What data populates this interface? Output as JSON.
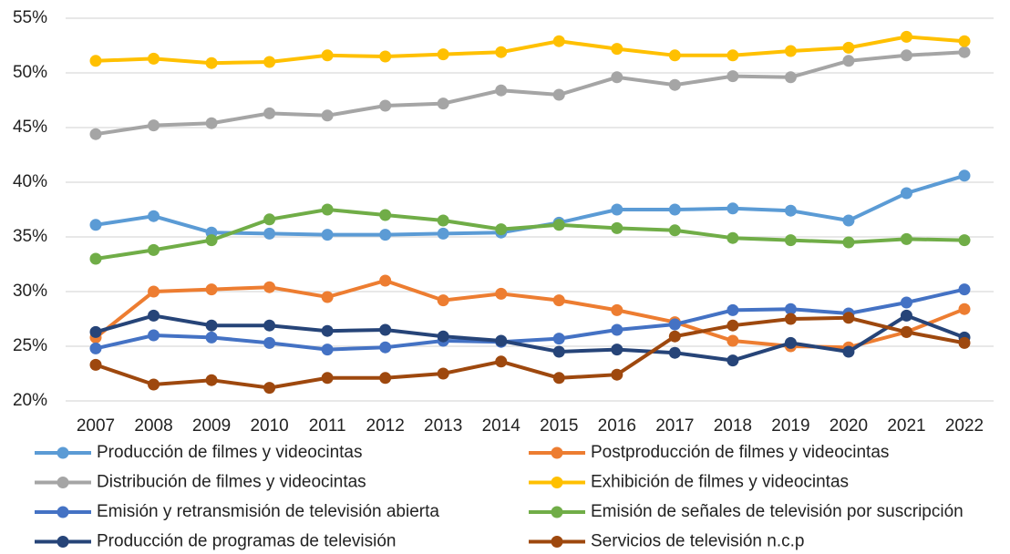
{
  "chart_data": {
    "type": "line",
    "categories": [
      "2007",
      "2008",
      "2009",
      "2010",
      "2011",
      "2012",
      "2013",
      "2014",
      "2015",
      "2016",
      "2017",
      "2018",
      "2019",
      "2020",
      "2021",
      "2022"
    ],
    "ylim": [
      20,
      55
    ],
    "yticks": [
      {
        "value": 20,
        "label": "20%"
      },
      {
        "value": 25,
        "label": "25%"
      },
      {
        "value": 30,
        "label": "30%"
      },
      {
        "value": 35,
        "label": "35%"
      },
      {
        "value": 40,
        "label": "40%"
      },
      {
        "value": 45,
        "label": "45%"
      },
      {
        "value": 50,
        "label": "50%"
      },
      {
        "value": 55,
        "label": "55%"
      }
    ],
    "grid": true,
    "series": [
      {
        "name": "Producción de filmes y videocintas",
        "color": "#5b9bd5",
        "values": [
          36.1,
          36.9,
          35.4,
          35.3,
          35.2,
          35.2,
          35.3,
          35.4,
          36.3,
          37.5,
          37.5,
          37.6,
          37.4,
          36.5,
          39.0,
          40.6
        ]
      },
      {
        "name": "Postproducción de filmes y videocintas",
        "color": "#ed7d31",
        "values": [
          25.8,
          30.0,
          30.2,
          30.4,
          29.5,
          31.0,
          29.2,
          29.8,
          29.2,
          28.3,
          27.2,
          25.5,
          25.0,
          24.9,
          26.3,
          28.4
        ]
      },
      {
        "name": "Distribución de filmes y videocintas",
        "color": "#a5a5a5",
        "values": [
          44.4,
          45.2,
          45.4,
          46.3,
          46.1,
          47.0,
          47.2,
          48.4,
          48.0,
          49.6,
          48.9,
          49.7,
          49.6,
          51.1,
          51.6,
          51.9
        ]
      },
      {
        "name": "Exhibición de filmes y videocintas",
        "color": "#ffc000",
        "values": [
          51.1,
          51.3,
          50.9,
          51.0,
          51.6,
          51.5,
          51.7,
          51.9,
          52.9,
          52.2,
          51.6,
          51.6,
          52.0,
          52.3,
          53.3,
          52.9
        ]
      },
      {
        "name": "Emisión y retransmisión de televisión abierta",
        "color": "#4472c4",
        "values": [
          24.8,
          26.0,
          25.8,
          25.3,
          24.7,
          24.9,
          25.5,
          25.4,
          25.7,
          26.5,
          27.0,
          28.3,
          28.4,
          28.0,
          29.0,
          30.2
        ]
      },
      {
        "name": "Emisión de señales de televisión por suscripción",
        "color": "#70ad47",
        "values": [
          33.0,
          33.8,
          34.7,
          36.6,
          37.5,
          37.0,
          36.5,
          35.7,
          36.1,
          35.8,
          35.6,
          34.9,
          34.7,
          34.5,
          34.8,
          34.7
        ]
      },
      {
        "name": "Producción de programas de televisión",
        "color": "#264478",
        "values": [
          26.3,
          27.8,
          26.9,
          26.9,
          26.4,
          26.5,
          25.9,
          25.5,
          24.5,
          24.7,
          24.4,
          23.7,
          25.3,
          24.5,
          27.8,
          25.8
        ]
      },
      {
        "name": "Servicios de televisión n.c.p",
        "color": "#9e480e",
        "values": [
          23.3,
          21.5,
          21.9,
          21.2,
          22.1,
          22.1,
          22.5,
          23.6,
          22.1,
          22.4,
          25.9,
          26.9,
          27.5,
          27.6,
          26.3,
          25.3
        ]
      }
    ]
  }
}
